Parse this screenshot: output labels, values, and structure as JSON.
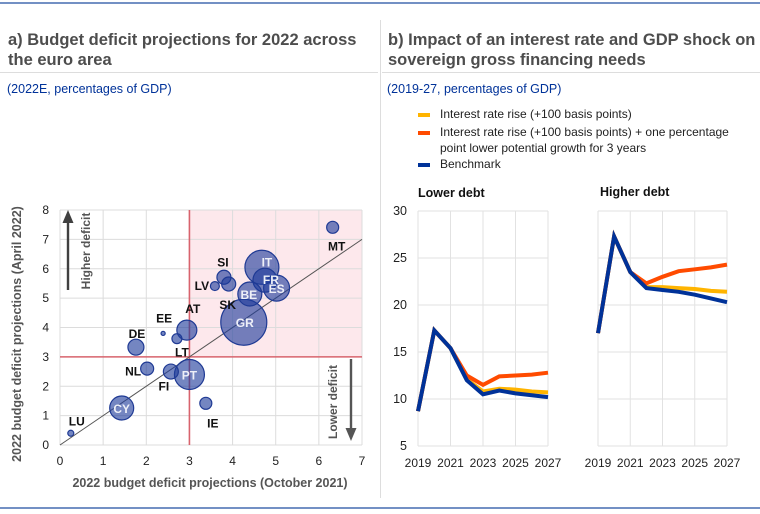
{
  "panel_a": {
    "title_lines": [
      "a) Budget deficit projections for 2022 across",
      "the euro area"
    ],
    "subtitle": "(2022E, percentages of GDP)"
  },
  "panel_b": {
    "title_lines": [
      "b) Impact of an interest rate and GDP shock on",
      "sovereign gross financing needs"
    ],
    "subtitle": "(2019-27, percentages of GDP)",
    "legend": [
      {
        "lines": [
          "Interest rate rise (+100 basis points)"
        ],
        "color": "#ffb400"
      },
      {
        "lines": [
          "Interest rate rise (+100 basis points) + one percentage",
          "point lower potential growth for 3 years"
        ],
        "color": "#ff4b00"
      },
      {
        "lines": [
          "Benchmark"
        ],
        "color": "#003299"
      }
    ]
  },
  "colors": {
    "frame_rule": "#7390c4",
    "bubble": "#1e3c9b",
    "bubble_stroke": "#1f3a94",
    "threshold_line": "#d8636d",
    "shaded_region": "#fde8ec",
    "diagonal_line": "#555555"
  },
  "chart_data": [
    {
      "type": "scatter",
      "title": "a) Budget deficit projections for 2022 across the euro area",
      "subtitle": "(2022E, percentages of GDP)",
      "xlabel": "2022 budget deficit projections (October 2021)",
      "ylabel": "2022 budget deficit projections (April 2022)",
      "xlim": [
        0,
        7
      ],
      "ylim": [
        0,
        8
      ],
      "xticks": [
        0,
        1,
        2,
        3,
        4,
        5,
        6,
        7
      ],
      "yticks": [
        0,
        1,
        2,
        3,
        4,
        5,
        6,
        7,
        8
      ],
      "grid": true,
      "thresholds": {
        "x": 3,
        "y": 3
      },
      "shaded_region": {
        "x_from": 3,
        "y_from": 3
      },
      "diagonal": "45-degree line (y = x)",
      "annotations": {
        "higher": "Higher deficit",
        "lower": "Lower deficit"
      },
      "bubble_size_note": "relative bubble size (largest = 100)",
      "points": [
        {
          "label": "GR",
          "x": 4.26,
          "y": 4.18,
          "size": 100
        },
        {
          "label": "IT",
          "x": 4.68,
          "y": 6.05,
          "size": 54.6
        },
        {
          "label": "PT",
          "x": 3.0,
          "y": 2.4,
          "size": 42.5
        },
        {
          "label": "ES",
          "x": 5.02,
          "y": 5.34,
          "size": 31.9
        },
        {
          "label": "CY",
          "x": 1.43,
          "y": 1.26,
          "size": 27.2
        },
        {
          "label": "FR",
          "x": 4.75,
          "y": 5.61,
          "size": 27.2
        },
        {
          "label": "BE",
          "x": 4.4,
          "y": 5.14,
          "size": 27.2
        },
        {
          "label": "AT",
          "x": 2.94,
          "y": 3.91,
          "size": 18.9
        },
        {
          "label": "DE",
          "x": 1.76,
          "y": 3.33,
          "size": 12.1
        },
        {
          "label": "FI",
          "x": 2.57,
          "y": 2.5,
          "size": 10.6
        },
        {
          "label": "SI",
          "x": 3.8,
          "y": 5.71,
          "size": 9.3
        },
        {
          "label": "SK",
          "x": 3.91,
          "y": 5.48,
          "size": 9.3
        },
        {
          "label": "NL",
          "x": 2.02,
          "y": 2.6,
          "size": 8.0
        },
        {
          "label": "IE",
          "x": 3.38,
          "y": 1.42,
          "size": 6.8
        },
        {
          "label": "MT",
          "x": 6.32,
          "y": 7.41,
          "size": 6.8
        },
        {
          "label": "LT",
          "x": 2.71,
          "y": 3.62,
          "size": 4.7
        },
        {
          "label": "LV",
          "x": 3.59,
          "y": 5.41,
          "size": 3.8
        },
        {
          "label": "LU",
          "x": 0.25,
          "y": 0.4,
          "size": 1.7
        },
        {
          "label": "EE",
          "x": 2.39,
          "y": 3.8,
          "size": 0.8
        }
      ]
    },
    {
      "type": "line",
      "title": "Lower debt",
      "x": [
        2019,
        2020,
        2021,
        2022,
        2023,
        2024,
        2025,
        2026,
        2027
      ],
      "xticks": [
        2019,
        2021,
        2023,
        2025,
        2027
      ],
      "ylim": [
        5,
        30
      ],
      "yticks": [
        5,
        10,
        15,
        20,
        25,
        30
      ],
      "grid": true,
      "series": [
        {
          "name": "Interest rate rise (+100 basis points)",
          "color": "#ffb400",
          "values": [
            8.7,
            17.3,
            15.4,
            12.1,
            10.8,
            11.1,
            11.0,
            10.8,
            10.7
          ]
        },
        {
          "name": "Interest rate rise (+100 basis points) + one percentage point lower potential growth for 3 years",
          "color": "#ff4b00",
          "values": [
            8.7,
            17.3,
            15.4,
            12.5,
            11.5,
            12.4,
            12.5,
            12.6,
            12.8
          ]
        },
        {
          "name": "Benchmark",
          "color": "#003299",
          "values": [
            8.7,
            17.3,
            15.4,
            12.0,
            10.5,
            10.9,
            10.6,
            10.4,
            10.2
          ]
        }
      ]
    },
    {
      "type": "line",
      "title": "Higher debt",
      "x": [
        2019,
        2020,
        2021,
        2022,
        2023,
        2024,
        2025,
        2026,
        2027
      ],
      "xticks": [
        2019,
        2021,
        2023,
        2025,
        2027
      ],
      "ylim": [
        5,
        30
      ],
      "grid_step": 5,
      "grid": true,
      "series": [
        {
          "name": "Interest rate rise (+100 basis points)",
          "color": "#ffb400",
          "values": [
            17.0,
            27.3,
            23.5,
            21.9,
            21.9,
            21.8,
            21.7,
            21.5,
            21.4
          ]
        },
        {
          "name": "Interest rate rise (+100 basis points) + one percentage point lower potential growth for 3 years",
          "color": "#ff4b00",
          "values": [
            17.0,
            27.3,
            23.5,
            22.3,
            23.0,
            23.6,
            23.8,
            24.0,
            24.3
          ]
        },
        {
          "name": "Benchmark",
          "color": "#003299",
          "values": [
            17.0,
            27.3,
            23.5,
            21.8,
            21.6,
            21.4,
            21.1,
            20.7,
            20.3
          ]
        }
      ]
    }
  ]
}
